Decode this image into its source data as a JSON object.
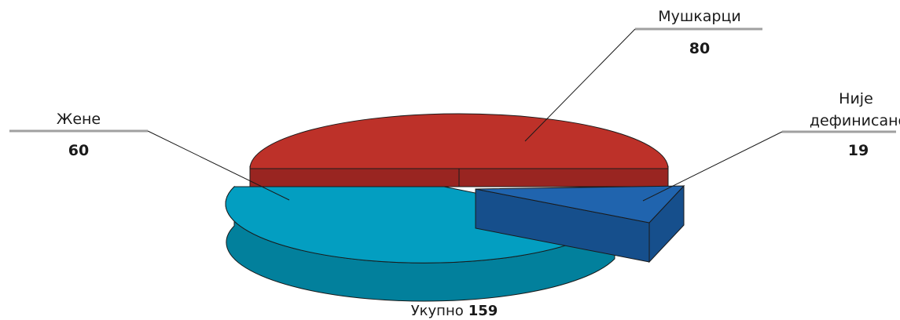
{
  "chart_data": {
    "type": "pie",
    "categories": [
      "Мушкарци",
      "Жене",
      "Није дефинисано"
    ],
    "values": [
      80,
      60,
      19
    ],
    "total_label": "Укупно",
    "total_value": 159,
    "legend": "none",
    "colors": {
      "Мушкарци": {
        "top": "#bd3129",
        "side": "#992521"
      },
      "Жене": {
        "top": "#039ec1",
        "side": "#02809c"
      },
      "Није дефинисано": {
        "top": "#2064ae",
        "side": "#164f8c"
      }
    },
    "leader_line_color": "#a0a0a0"
  }
}
